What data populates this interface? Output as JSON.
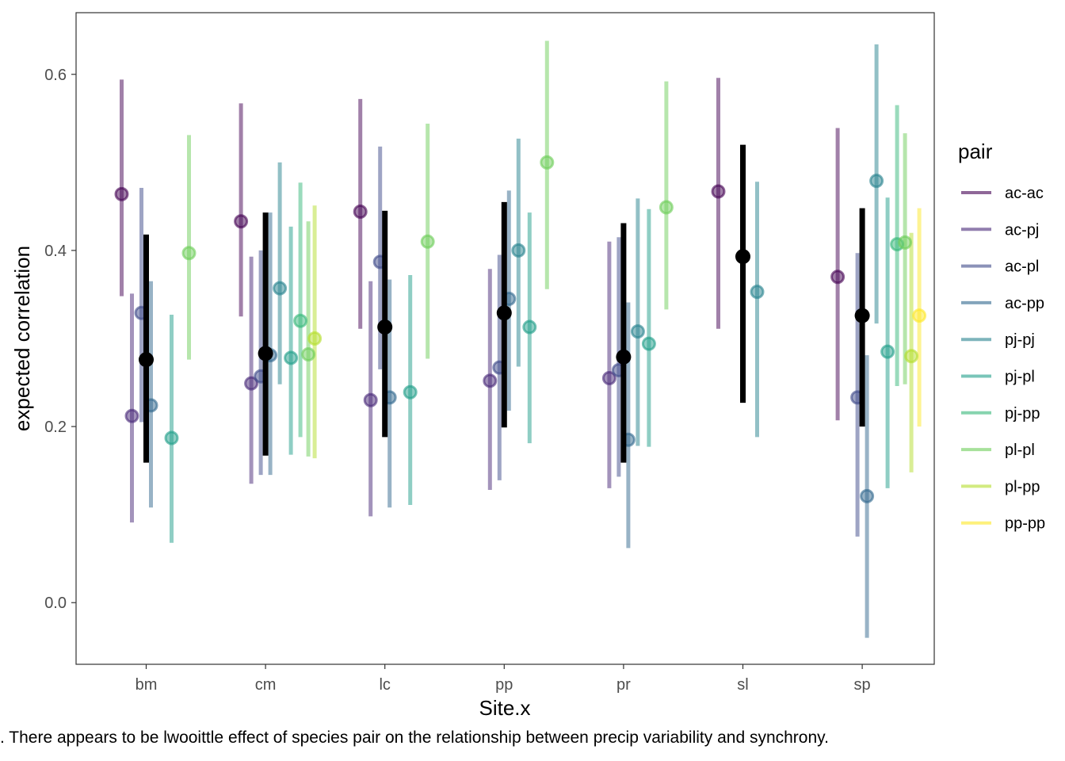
{
  "caption": ". There appears to be lwooittle effect of species pair on the relationship between precip variability and synchrony.",
  "chart_data": {
    "type": "scatter",
    "title": "",
    "xlabel": "Site.x",
    "ylabel": "expected correlation",
    "categories": [
      "bm",
      "cm",
      "lc",
      "pp",
      "pr",
      "sl",
      "sp"
    ],
    "ylim": [
      -0.07,
      0.67
    ],
    "yticks": [
      0.0,
      0.2,
      0.4,
      0.6
    ],
    "ytick_labels": [
      "0.0",
      "0.2",
      "0.4",
      "0.6"
    ],
    "grid": false,
    "legend": {
      "title": "pair",
      "position": "right"
    },
    "pairs": [
      "ac-ac",
      "ac-pj",
      "ac-pl",
      "ac-pp",
      "pj-pj",
      "pj-pl",
      "pj-pp",
      "pl-pl",
      "pl-pp",
      "pp-pp"
    ],
    "pair_colors": [
      "#440154",
      "#482878",
      "#3E4A89",
      "#31688E",
      "#26828E",
      "#1F9E89",
      "#35B779",
      "#6DCD59",
      "#B4DE2C",
      "#FDE725"
    ],
    "series": [
      {
        "name": "ac-ac",
        "points": [
          {
            "site": "bm",
            "y": 0.464,
            "lo": 0.348,
            "hi": 0.594
          },
          {
            "site": "cm",
            "y": 0.433,
            "lo": 0.325,
            "hi": 0.567
          },
          {
            "site": "lc",
            "y": 0.444,
            "lo": 0.311,
            "hi": 0.572
          },
          {
            "site": "sl",
            "y": 0.467,
            "lo": 0.311,
            "hi": 0.596
          },
          {
            "site": "sp",
            "y": 0.37,
            "lo": 0.207,
            "hi": 0.539
          }
        ]
      },
      {
        "name": "ac-pj",
        "points": [
          {
            "site": "bm",
            "y": 0.212,
            "lo": 0.091,
            "hi": 0.351
          },
          {
            "site": "cm",
            "y": 0.249,
            "lo": 0.135,
            "hi": 0.393
          },
          {
            "site": "lc",
            "y": 0.23,
            "lo": 0.098,
            "hi": 0.365
          },
          {
            "site": "pp",
            "y": 0.252,
            "lo": 0.128,
            "hi": 0.379
          },
          {
            "site": "pr",
            "y": 0.255,
            "lo": 0.13,
            "hi": 0.41
          }
        ]
      },
      {
        "name": "ac-pl",
        "points": [
          {
            "site": "bm",
            "y": 0.329,
            "lo": 0.205,
            "hi": 0.471
          },
          {
            "site": "cm",
            "y": 0.257,
            "lo": 0.145,
            "hi": 0.4
          },
          {
            "site": "lc",
            "y": 0.387,
            "lo": 0.265,
            "hi": 0.518
          },
          {
            "site": "pp",
            "y": 0.267,
            "lo": 0.139,
            "hi": 0.395
          },
          {
            "site": "pr",
            "y": 0.264,
            "lo": 0.143,
            "hi": 0.415
          },
          {
            "site": "sp",
            "y": 0.233,
            "lo": 0.075,
            "hi": 0.397
          }
        ]
      },
      {
        "name": "ac-pp",
        "points": [
          {
            "site": "bm",
            "y": 0.224,
            "lo": 0.108,
            "hi": 0.365
          },
          {
            "site": "cm",
            "y": 0.281,
            "lo": 0.145,
            "hi": 0.443
          },
          {
            "site": "lc",
            "y": 0.233,
            "lo": 0.108,
            "hi": 0.367
          },
          {
            "site": "pp",
            "y": 0.345,
            "lo": 0.218,
            "hi": 0.468
          },
          {
            "site": "pr",
            "y": 0.185,
            "lo": 0.062,
            "hi": 0.341
          },
          {
            "site": "sp",
            "y": 0.121,
            "lo": -0.04,
            "hi": 0.281
          }
        ]
      },
      {
        "name": "pj-pj",
        "points": [
          {
            "site": "cm",
            "y": 0.357,
            "lo": 0.248,
            "hi": 0.5
          },
          {
            "site": "pp",
            "y": 0.4,
            "lo": 0.268,
            "hi": 0.527
          },
          {
            "site": "pr",
            "y": 0.308,
            "lo": 0.178,
            "hi": 0.459
          },
          {
            "site": "sl",
            "y": 0.353,
            "lo": 0.188,
            "hi": 0.478
          },
          {
            "site": "sp",
            "y": 0.479,
            "lo": 0.317,
            "hi": 0.634
          }
        ]
      },
      {
        "name": "pj-pl",
        "points": [
          {
            "site": "bm",
            "y": 0.187,
            "lo": 0.068,
            "hi": 0.327
          },
          {
            "site": "cm",
            "y": 0.278,
            "lo": 0.168,
            "hi": 0.427
          },
          {
            "site": "lc",
            "y": 0.239,
            "lo": 0.111,
            "hi": 0.372
          },
          {
            "site": "pp",
            "y": 0.313,
            "lo": 0.181,
            "hi": 0.443
          },
          {
            "site": "pr",
            "y": 0.294,
            "lo": 0.177,
            "hi": 0.447
          },
          {
            "site": "sp",
            "y": 0.285,
            "lo": 0.13,
            "hi": 0.46
          }
        ]
      },
      {
        "name": "pj-pp",
        "points": [
          {
            "site": "cm",
            "y": 0.32,
            "lo": 0.188,
            "hi": 0.477
          },
          {
            "site": "sp",
            "y": 0.407,
            "lo": 0.246,
            "hi": 0.565
          }
        ]
      },
      {
        "name": "pl-pl",
        "points": [
          {
            "site": "bm",
            "y": 0.397,
            "lo": 0.276,
            "hi": 0.531
          },
          {
            "site": "cm",
            "y": 0.282,
            "lo": 0.166,
            "hi": 0.433
          },
          {
            "site": "lc",
            "y": 0.41,
            "lo": 0.277,
            "hi": 0.544
          },
          {
            "site": "pp",
            "y": 0.5,
            "lo": 0.356,
            "hi": 0.638
          },
          {
            "site": "pr",
            "y": 0.449,
            "lo": 0.333,
            "hi": 0.592
          },
          {
            "site": "sp",
            "y": 0.409,
            "lo": 0.248,
            "hi": 0.533
          }
        ]
      },
      {
        "name": "pl-pp",
        "points": [
          {
            "site": "cm",
            "y": 0.3,
            "lo": 0.164,
            "hi": 0.451
          },
          {
            "site": "sp",
            "y": 0.28,
            "lo": 0.148,
            "hi": 0.42
          }
        ]
      },
      {
        "name": "pp-pp",
        "points": [
          {
            "site": "sp",
            "y": 0.326,
            "lo": 0.2,
            "hi": 0.448
          }
        ]
      }
    ],
    "site_means": [
      {
        "site": "bm",
        "y": 0.276,
        "lo": 0.159,
        "hi": 0.418
      },
      {
        "site": "cm",
        "y": 0.283,
        "lo": 0.167,
        "hi": 0.443
      },
      {
        "site": "lc",
        "y": 0.313,
        "lo": 0.188,
        "hi": 0.445
      },
      {
        "site": "pp",
        "y": 0.329,
        "lo": 0.199,
        "hi": 0.455
      },
      {
        "site": "pr",
        "y": 0.279,
        "lo": 0.159,
        "hi": 0.431
      },
      {
        "site": "sl",
        "y": 0.393,
        "lo": 0.227,
        "hi": 0.52
      },
      {
        "site": "sp",
        "y": 0.326,
        "lo": 0.2,
        "hi": 0.448
      }
    ]
  }
}
